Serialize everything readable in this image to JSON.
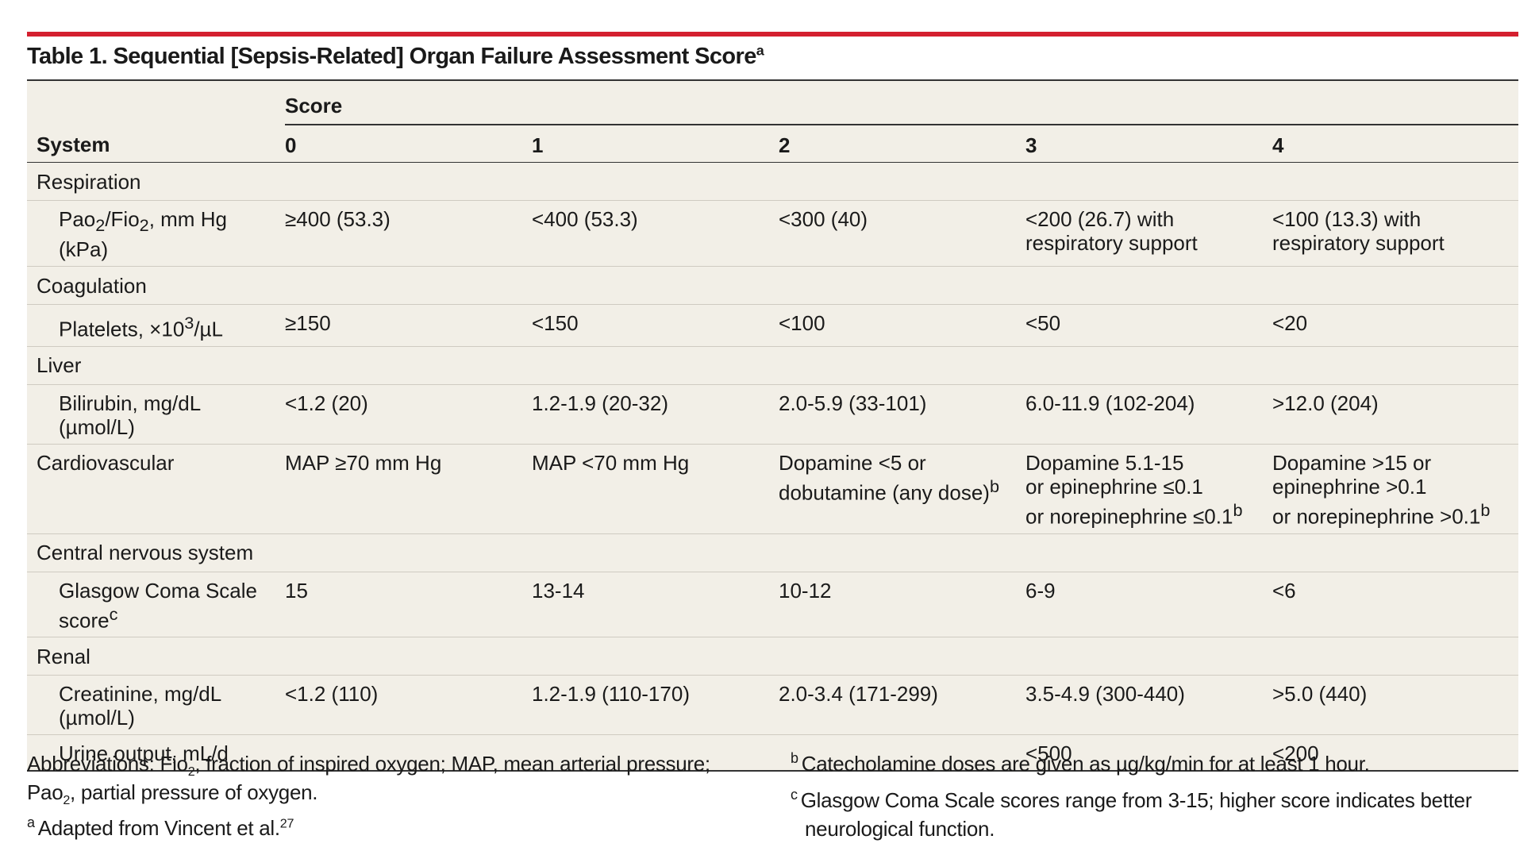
{
  "title": {
    "text": "Table 1. Sequential [Sepsis-Related] Organ Failure Assessment Score",
    "sup": "a"
  },
  "header": {
    "system": "System",
    "score": "Score",
    "scores": [
      "0",
      "1",
      "2",
      "3",
      "4"
    ]
  },
  "rows": {
    "respiration": {
      "label": "Respiration",
      "pao2": {
        "label_a": "Pao",
        "label_sub1": "2",
        "label_b": "/Fio",
        "label_sub2": "2",
        "label_c": ", mm Hg",
        "label_d": "(kPa)",
        "values": [
          [
            "≥400 (53.3)"
          ],
          [
            "<400 (53.3)"
          ],
          [
            "<300 (40)"
          ],
          [
            "<200 (26.7) with",
            "respiratory support"
          ],
          [
            "<100 (13.3) with",
            "respiratory support"
          ]
        ]
      }
    },
    "coagulation": {
      "label": "Coagulation",
      "platelets": {
        "label_a": "Platelets, ×10",
        "label_sup": "3",
        "label_b": "/µL",
        "values": [
          "≥150",
          "<150",
          "<100",
          "<50",
          "<20"
        ]
      }
    },
    "liver": {
      "label": "Liver",
      "bilirubin": {
        "label_a": "Bilirubin, mg/dL",
        "label_b": "(µmol/L)",
        "values": [
          "<1.2 (20)",
          "1.2-1.9 (20-32)",
          "2.0-5.9 (33-101)",
          "6.0-11.9 (102-204)",
          ">12.0 (204)"
        ]
      }
    },
    "cardiovascular": {
      "label": "Cardiovascular",
      "values": [
        {
          "lines": [
            "MAP ≥70 mm Hg"
          ],
          "sup": ""
        },
        {
          "lines": [
            "MAP <70 mm Hg"
          ],
          "sup": ""
        },
        {
          "lines": [
            "Dopamine <5 or",
            "dobutamine (any dose)"
          ],
          "sup": "b"
        },
        {
          "lines": [
            "Dopamine 5.1-15",
            "or epinephrine ≤0.1",
            "or norepinephrine ≤0.1"
          ],
          "sup": "b"
        },
        {
          "lines": [
            "Dopamine >15 or",
            "epinephrine >0.1",
            "or norepinephrine >0.1"
          ],
          "sup": "b"
        }
      ]
    },
    "cns": {
      "label": "Central nervous system",
      "gcs": {
        "label_a": "Glasgow Coma Scale",
        "label_b": "score",
        "label_sup": "c",
        "values": [
          "15",
          "13-14",
          "10-12",
          "6-9",
          "<6"
        ]
      }
    },
    "renal": {
      "label": "Renal",
      "creatinine": {
        "label_a": "Creatinine, mg/dL",
        "label_b": "(µmol/L)",
        "values": [
          "<1.2 (110)",
          "1.2-1.9 (110-170)",
          "2.0-3.4 (171-299)",
          "3.5-4.9 (300-440)",
          ">5.0 (440)"
        ]
      },
      "urine": {
        "label": "Urine output, mL/d",
        "values": [
          "",
          "",
          "",
          "<500",
          "<200"
        ]
      }
    }
  },
  "footnotes": {
    "abbrev_a": "Abbreviations: Fio",
    "abbrev_sub1": "2",
    "abbrev_b": ", fraction of inspired oxygen; MAP, mean arterial pressure;",
    "abbrev_c": "Pao",
    "abbrev_sub2": "2",
    "abbrev_d": ", partial pressure of oxygen.",
    "a_mark": "a",
    "a_text": "Adapted from Vincent et al.",
    "a_ref": "27",
    "b_mark": "b",
    "b_text": "Catecholamine doses are given as µg/kg/min for at least 1 hour.",
    "c_mark": "c",
    "c_text_1": "Glasgow Coma Scale scores range from 3-15; higher score indicates better",
    "c_text_2": "neurological function."
  }
}
